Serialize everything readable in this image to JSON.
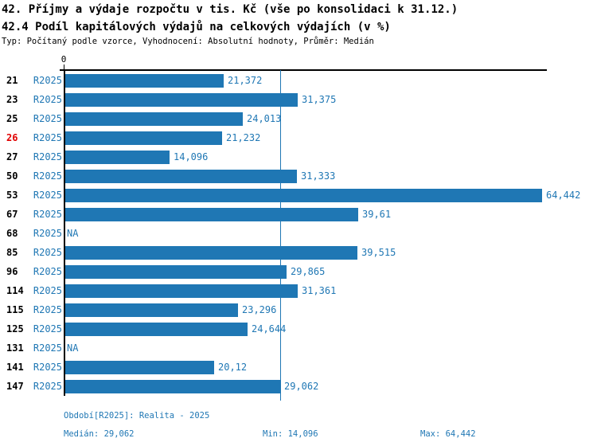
{
  "title1": "42. Příjmy a výdaje rozpočtu v tis. Kč (vše po konsolidaci k 31.12.)",
  "title2": "42.4 Podíl kapitálových výdajů na celkových výdajích (v %)",
  "subtitle": "Typ: Počítaný podle vzorce, Vyhodnocení: Absolutní hodnoty, Průměr: Medián",
  "axis": {
    "zero_label": "0"
  },
  "colors": {
    "bar": "#1f77b4",
    "blue_text": "#1f77b4",
    "highlight_red": "#e00000",
    "axis_black": "#000000"
  },
  "chart_data": {
    "type": "bar",
    "orientation": "horizontal",
    "series_label": "R2025",
    "categories": [
      "21",
      "23",
      "25",
      "26",
      "27",
      "50",
      "53",
      "67",
      "68",
      "85",
      "96",
      "114",
      "115",
      "125",
      "131",
      "141",
      "147"
    ],
    "highlighted_category": "26",
    "values": [
      21.372,
      31.375,
      24.013,
      21.232,
      14.096,
      31.333,
      64.442,
      39.61,
      null,
      39.515,
      29.865,
      31.361,
      23.296,
      24.644,
      null,
      20.12,
      29.062
    ],
    "value_labels": [
      "21,372",
      "31,375",
      "24,013",
      "21,232",
      "14,096",
      "31,333",
      "64,442",
      "39,61",
      "NA",
      "39,515",
      "29,865",
      "31,361",
      "23,296",
      "24,644",
      "NA",
      "20,12",
      "29,062"
    ],
    "na_label": "NA",
    "xlim": [
      0,
      65.9
    ],
    "median_line_value": 29.062,
    "grid": false,
    "legend": "none"
  },
  "footer": {
    "period": "Období[R2025]: Realita - 2025",
    "median": "Medián: 29,062",
    "min": "Min: 14,096",
    "max": "Max: 64,442"
  }
}
